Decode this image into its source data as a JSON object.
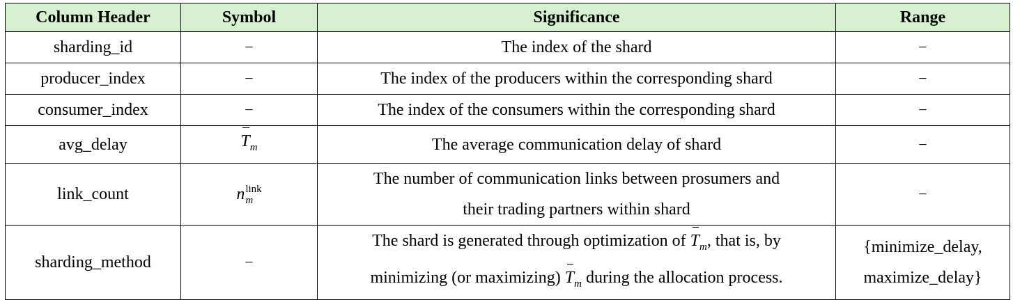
{
  "headers": [
    "Column Header",
    "Symbol",
    "Significance",
    "Range"
  ],
  "rows": [
    {
      "column": "sharding_id",
      "symbol": "−",
      "significance": "The index of the shard",
      "range": "−"
    },
    {
      "column": "producer_index",
      "symbol": "−",
      "significance": "The index of the producers within the corresponding shard",
      "range": "−"
    },
    {
      "column": "consumer_index",
      "symbol": "−",
      "significance": "The index of the consumers within the corresponding shard",
      "range": "−"
    },
    {
      "column": "avg_delay",
      "symbol_base": "T",
      "symbol_sub": "m",
      "significance": "The average communication delay of shard",
      "range": "−"
    },
    {
      "column": "link_count",
      "symbol_base": "n",
      "symbol_sup": "link",
      "symbol_sub": "m",
      "significance_lines": [
        "The number of communication links between prosumers and",
        "their trading partners within shard"
      ],
      "range": "−"
    },
    {
      "column": "sharding_method",
      "symbol": "−",
      "significance_line1_pre": "The shard is generated through optimization of ",
      "significance_line1_post": ", that is, by",
      "significance_line2_pre": "minimizing (or maximizing) ",
      "significance_line2_post": " during the allocation process.",
      "math_base": "T",
      "math_sub": "m",
      "range_lines": [
        "{minimize_delay,",
        "maximize_delay}"
      ]
    }
  ]
}
